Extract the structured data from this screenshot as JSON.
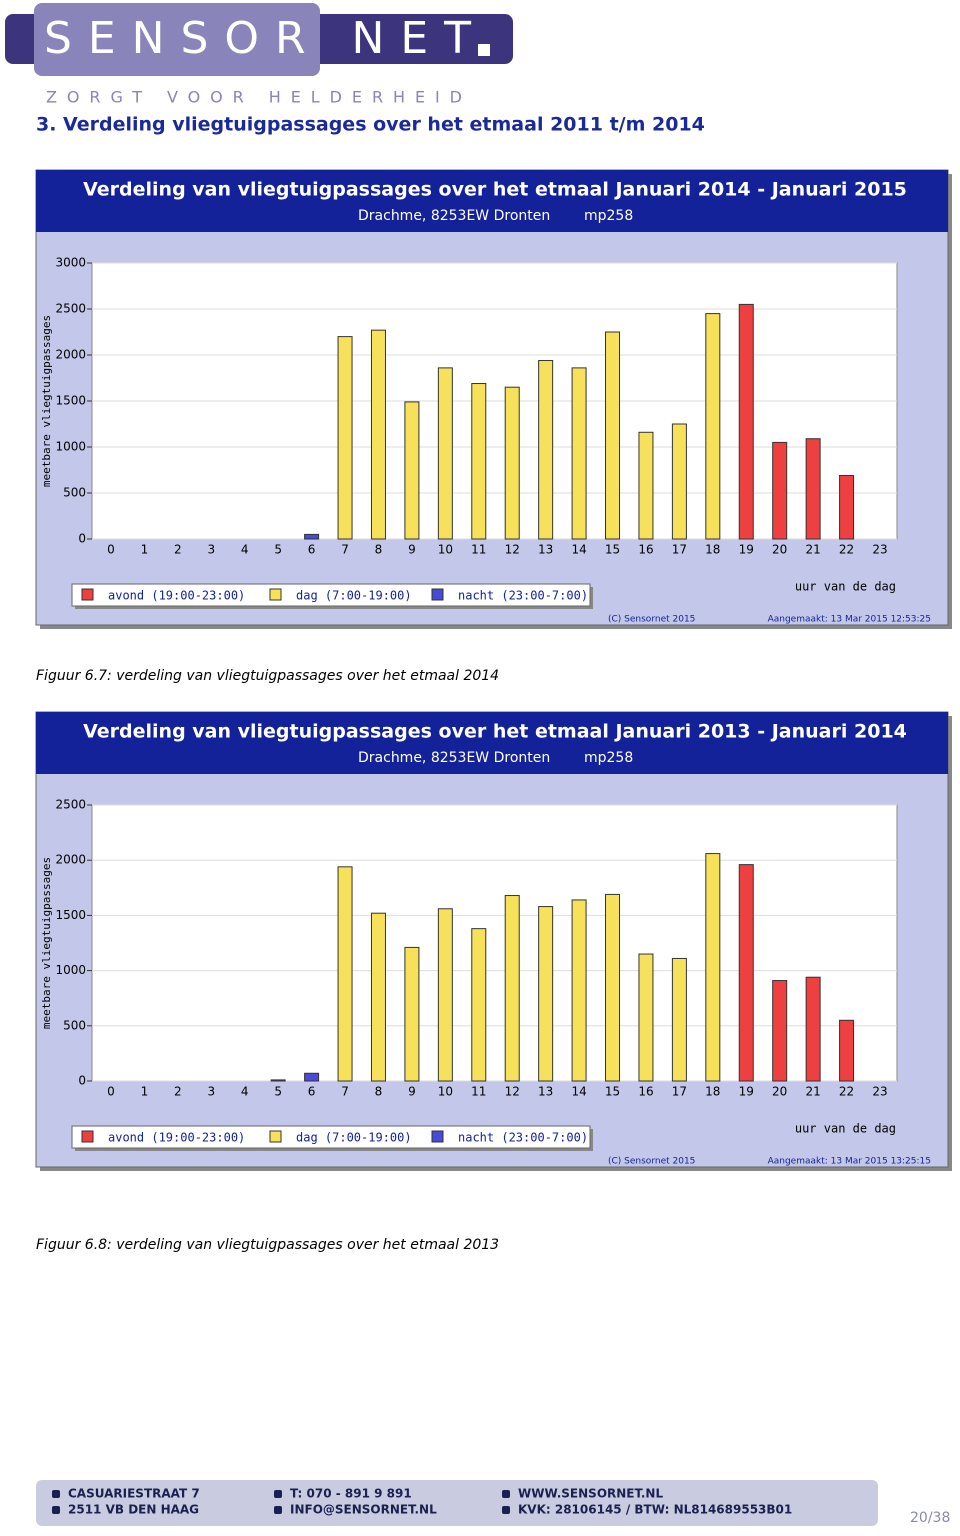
{
  "header": {
    "logo": "SENSOR NET",
    "tagline": "ZORGT VOOR HELDERHEID"
  },
  "heading": "3. Verdeling vliegtuigpassages over het etmaal 2011 t/m 2014",
  "chart_data": [
    {
      "type": "bar",
      "title": "Verdeling van vliegtuigpassages over het etmaal Januari 2014 - Januari 2015",
      "subtitle": "Drachme, 8253EW Dronten",
      "location_id": "mp258",
      "y_label": "meetbare vliegtuigpassages",
      "x_label": "uur van de dag",
      "categories": [
        "0",
        "1",
        "2",
        "3",
        "4",
        "5",
        "6",
        "7",
        "8",
        "9",
        "10",
        "11",
        "12",
        "13",
        "14",
        "15",
        "16",
        "17",
        "18",
        "19",
        "20",
        "21",
        "22",
        "23"
      ],
      "series": [
        {
          "name": "avond (19:00-23:00)",
          "color": "#ee4040",
          "values": [
            null,
            null,
            null,
            null,
            null,
            null,
            null,
            null,
            null,
            null,
            null,
            null,
            null,
            null,
            null,
            null,
            null,
            null,
            null,
            2550,
            1050,
            1090,
            690,
            null
          ]
        },
        {
          "name": "dag (7:00-19:00)",
          "color": "#f7e15a",
          "values": [
            null,
            null,
            null,
            null,
            null,
            null,
            null,
            2200,
            2270,
            1490,
            1860,
            1690,
            1650,
            1940,
            1860,
            2250,
            1160,
            1250,
            2450,
            null,
            null,
            null,
            null,
            null
          ]
        },
        {
          "name": "nacht (23:00-7:00)",
          "color": "#4a4ad8",
          "values": [
            0,
            0,
            0,
            0,
            0,
            0,
            50,
            null,
            null,
            null,
            null,
            null,
            null,
            null,
            null,
            null,
            null,
            null,
            null,
            null,
            null,
            null,
            null,
            0
          ]
        }
      ],
      "ylim": [
        0,
        3000
      ],
      "yticks": [
        0,
        500,
        1000,
        1500,
        2000,
        2500,
        3000
      ],
      "grid": true,
      "copyright": "(C) Sensornet 2015",
      "created": "Aangemaakt: 13 Mar 2015 12:53:25"
    },
    {
      "type": "bar",
      "title": "Verdeling van vliegtuigpassages over het etmaal Januari 2013 - Januari 2014",
      "subtitle": "Drachme, 8253EW Dronten",
      "location_id": "mp258",
      "y_label": "meetbare vliegtuigpassages",
      "x_label": "uur van de dag",
      "categories": [
        "0",
        "1",
        "2",
        "3",
        "4",
        "5",
        "6",
        "7",
        "8",
        "9",
        "10",
        "11",
        "12",
        "13",
        "14",
        "15",
        "16",
        "17",
        "18",
        "19",
        "20",
        "21",
        "22",
        "23"
      ],
      "series": [
        {
          "name": "avond (19:00-23:00)",
          "color": "#ee4040",
          "values": [
            null,
            null,
            null,
            null,
            null,
            null,
            null,
            null,
            null,
            null,
            null,
            null,
            null,
            null,
            null,
            null,
            null,
            null,
            null,
            1960,
            910,
            940,
            550,
            null
          ]
        },
        {
          "name": "dag (7:00-19:00)",
          "color": "#f7e15a",
          "values": [
            null,
            null,
            null,
            null,
            null,
            null,
            null,
            1940,
            1520,
            1210,
            1560,
            1380,
            1680,
            1580,
            1640,
            1690,
            1150,
            1110,
            2060,
            null,
            null,
            null,
            null,
            null
          ]
        },
        {
          "name": "nacht (23:00-7:00)",
          "color": "#4a4ad8",
          "values": [
            0,
            0,
            0,
            0,
            0,
            10,
            70,
            null,
            null,
            null,
            null,
            null,
            null,
            null,
            null,
            null,
            null,
            null,
            null,
            null,
            null,
            null,
            null,
            0
          ]
        }
      ],
      "ylim": [
        0,
        2500
      ],
      "yticks": [
        0,
        500,
        1000,
        1500,
        2000,
        2500
      ],
      "grid": true,
      "copyright": "(C) Sensornet 2015",
      "created": "Aangemaakt: 13 Mar 2015 13:25:15"
    }
  ],
  "captions": [
    "Figuur 6.7: verdeling van vliegtuigpassages over het etmaal 2014",
    "Figuur 6.8: verdeling van vliegtuigpassages over het etmaal 2013"
  ],
  "footer": {
    "lines": [
      [
        "CASUARIESTRAAT 7",
        "T: 070 - 891 9 891",
        "WWW.SENSORNET.NL"
      ],
      [
        "2511 VB DEN HAAG",
        "INFO@SENSORNET.NL",
        "KVK: 28106145 / BTW: NL814689553B01"
      ]
    ],
    "page": "20/38"
  }
}
